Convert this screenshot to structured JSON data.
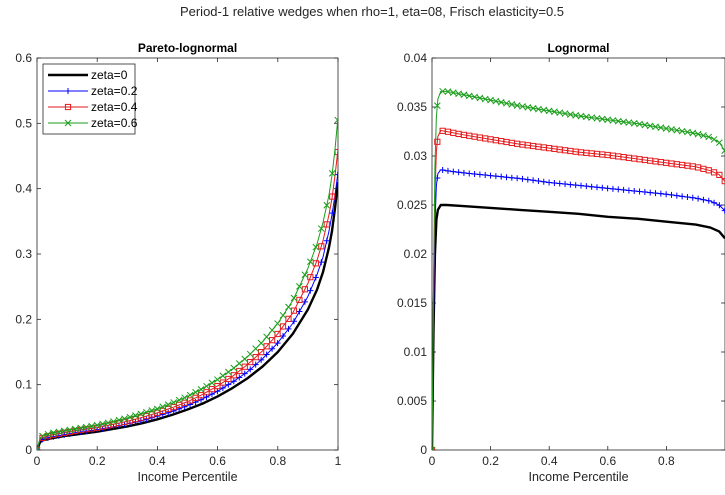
{
  "figure": {
    "title": "Period-1 relative wedges when rho=1, eta=08, Frisch elasticity=0.5"
  },
  "chart_data": [
    {
      "type": "line",
      "title": "Pareto-lognormal",
      "xlabel": "Income Percentile",
      "ylabel": "",
      "xlim": [
        0,
        1
      ],
      "ylim": [
        0,
        0.6
      ],
      "xticks": [
        "0",
        "0.2",
        "0.4",
        "0.6",
        "0.8",
        "1"
      ],
      "yticks": [
        "0",
        "0.1",
        "0.2",
        "0.3",
        "0.4",
        "0.5",
        "0.6"
      ],
      "grid": false,
      "legend": "top-left",
      "series": [
        {
          "name": "zeta=0",
          "color": "#000000",
          "marker": "none",
          "x": [
            0,
            0.01,
            0.02,
            0.05,
            0.1,
            0.15,
            0.2,
            0.25,
            0.3,
            0.35,
            0.4,
            0.45,
            0.5,
            0.55,
            0.6,
            0.65,
            0.7,
            0.75,
            0.8,
            0.85,
            0.9,
            0.93,
            0.95,
            0.97,
            0.98,
            0.99,
            1.0
          ],
          "y": [
            0,
            0.012,
            0.015,
            0.018,
            0.022,
            0.025,
            0.028,
            0.032,
            0.036,
            0.041,
            0.047,
            0.054,
            0.062,
            0.071,
            0.082,
            0.095,
            0.11,
            0.128,
            0.15,
            0.178,
            0.215,
            0.245,
            0.272,
            0.31,
            0.335,
            0.37,
            0.41
          ]
        },
        {
          "name": "zeta=0.2",
          "color": "#0000ff",
          "marker": "plus",
          "x": [
            0,
            0.01,
            0.02,
            0.05,
            0.1,
            0.15,
            0.2,
            0.25,
            0.3,
            0.35,
            0.4,
            0.45,
            0.5,
            0.55,
            0.6,
            0.65,
            0.7,
            0.75,
            0.8,
            0.85,
            0.9,
            0.93,
            0.95,
            0.97,
            0.98,
            0.99,
            1.0
          ],
          "y": [
            0,
            0.014,
            0.017,
            0.02,
            0.024,
            0.028,
            0.031,
            0.035,
            0.04,
            0.045,
            0.052,
            0.059,
            0.068,
            0.078,
            0.09,
            0.104,
            0.12,
            0.14,
            0.164,
            0.194,
            0.235,
            0.268,
            0.295,
            0.335,
            0.36,
            0.39,
            0.425
          ]
        },
        {
          "name": "zeta=0.4",
          "color": "#e41a1c",
          "marker": "square",
          "x": [
            0,
            0.01,
            0.02,
            0.05,
            0.1,
            0.15,
            0.2,
            0.25,
            0.3,
            0.35,
            0.4,
            0.45,
            0.5,
            0.55,
            0.6,
            0.65,
            0.7,
            0.75,
            0.8,
            0.85,
            0.9,
            0.93,
            0.95,
            0.97,
            0.98,
            0.99,
            1.0
          ],
          "y": [
            0,
            0.016,
            0.019,
            0.023,
            0.027,
            0.031,
            0.034,
            0.039,
            0.044,
            0.05,
            0.057,
            0.065,
            0.074,
            0.085,
            0.098,
            0.113,
            0.131,
            0.152,
            0.178,
            0.21,
            0.255,
            0.29,
            0.32,
            0.36,
            0.385,
            0.42,
            0.46
          ]
        },
        {
          "name": "zeta=0.6",
          "color": "#1b9e1b",
          "marker": "x",
          "x": [
            0,
            0.01,
            0.02,
            0.05,
            0.1,
            0.15,
            0.2,
            0.25,
            0.3,
            0.35,
            0.4,
            0.45,
            0.5,
            0.55,
            0.6,
            0.65,
            0.7,
            0.75,
            0.8,
            0.85,
            0.9,
            0.93,
            0.95,
            0.97,
            0.98,
            0.99,
            1.0
          ],
          "y": [
            0,
            0.018,
            0.022,
            0.026,
            0.03,
            0.034,
            0.038,
            0.043,
            0.049,
            0.056,
            0.063,
            0.072,
            0.082,
            0.094,
            0.108,
            0.124,
            0.143,
            0.166,
            0.194,
            0.229,
            0.278,
            0.315,
            0.348,
            0.39,
            0.42,
            0.46,
            0.51
          ]
        }
      ]
    },
    {
      "type": "line",
      "title": "Lognormal",
      "xlabel": "Income Percentile",
      "ylabel": "",
      "xlim": [
        0,
        1
      ],
      "ylim": [
        0,
        0.04
      ],
      "xticks": [
        "0",
        "0.2",
        "0.4",
        "0.6",
        "0.8"
      ],
      "yticks": [
        "0",
        "0.005",
        "0.01",
        "0.015",
        "0.02",
        "0.025",
        "0.03",
        "0.035",
        "0.04"
      ],
      "grid": false,
      "series": [
        {
          "name": "zeta=0",
          "color": "#000000",
          "marker": "none",
          "x": [
            0,
            0.002,
            0.005,
            0.01,
            0.015,
            0.02,
            0.03,
            0.05,
            0.1,
            0.2,
            0.3,
            0.4,
            0.5,
            0.6,
            0.7,
            0.8,
            0.9,
            0.95,
            0.98,
            1.0
          ],
          "y": [
            0,
            0.005,
            0.012,
            0.02,
            0.0235,
            0.0245,
            0.025,
            0.025,
            0.0249,
            0.0247,
            0.0245,
            0.0243,
            0.0241,
            0.0238,
            0.0236,
            0.0233,
            0.023,
            0.0227,
            0.0223,
            0.0216
          ]
        },
        {
          "name": "zeta=0.2",
          "color": "#0000ff",
          "marker": "plus",
          "x": [
            0,
            0.002,
            0.005,
            0.01,
            0.015,
            0.02,
            0.03,
            0.05,
            0.1,
            0.2,
            0.3,
            0.4,
            0.5,
            0.6,
            0.7,
            0.8,
            0.9,
            0.95,
            0.98,
            1.0
          ],
          "y": [
            0,
            0.0055,
            0.0135,
            0.023,
            0.027,
            0.0282,
            0.0286,
            0.0285,
            0.0283,
            0.028,
            0.0277,
            0.0273,
            0.027,
            0.0267,
            0.0264,
            0.0261,
            0.0257,
            0.0254,
            0.025,
            0.0244
          ]
        },
        {
          "name": "zeta=0.4",
          "color": "#e41a1c",
          "marker": "square",
          "x": [
            0,
            0.002,
            0.005,
            0.01,
            0.015,
            0.02,
            0.03,
            0.05,
            0.1,
            0.2,
            0.3,
            0.4,
            0.5,
            0.6,
            0.7,
            0.8,
            0.9,
            0.95,
            0.98,
            1.0
          ],
          "y": [
            0,
            0.006,
            0.015,
            0.026,
            0.0305,
            0.032,
            0.0326,
            0.0325,
            0.0322,
            0.0317,
            0.0312,
            0.0308,
            0.0304,
            0.0301,
            0.0297,
            0.0293,
            0.0289,
            0.0285,
            0.0281,
            0.0274
          ]
        },
        {
          "name": "zeta=0.6",
          "color": "#1b9e1b",
          "marker": "x",
          "x": [
            0,
            0.002,
            0.005,
            0.01,
            0.015,
            0.02,
            0.03,
            0.05,
            0.1,
            0.2,
            0.3,
            0.4,
            0.5,
            0.6,
            0.7,
            0.8,
            0.9,
            0.95,
            0.98,
            1.0
          ],
          "y": [
            0,
            0.0065,
            0.0165,
            0.029,
            0.034,
            0.0358,
            0.0366,
            0.0366,
            0.0363,
            0.0357,
            0.0351,
            0.0346,
            0.0341,
            0.0337,
            0.0333,
            0.0328,
            0.0323,
            0.0319,
            0.0314,
            0.0305
          ]
        }
      ]
    }
  ]
}
